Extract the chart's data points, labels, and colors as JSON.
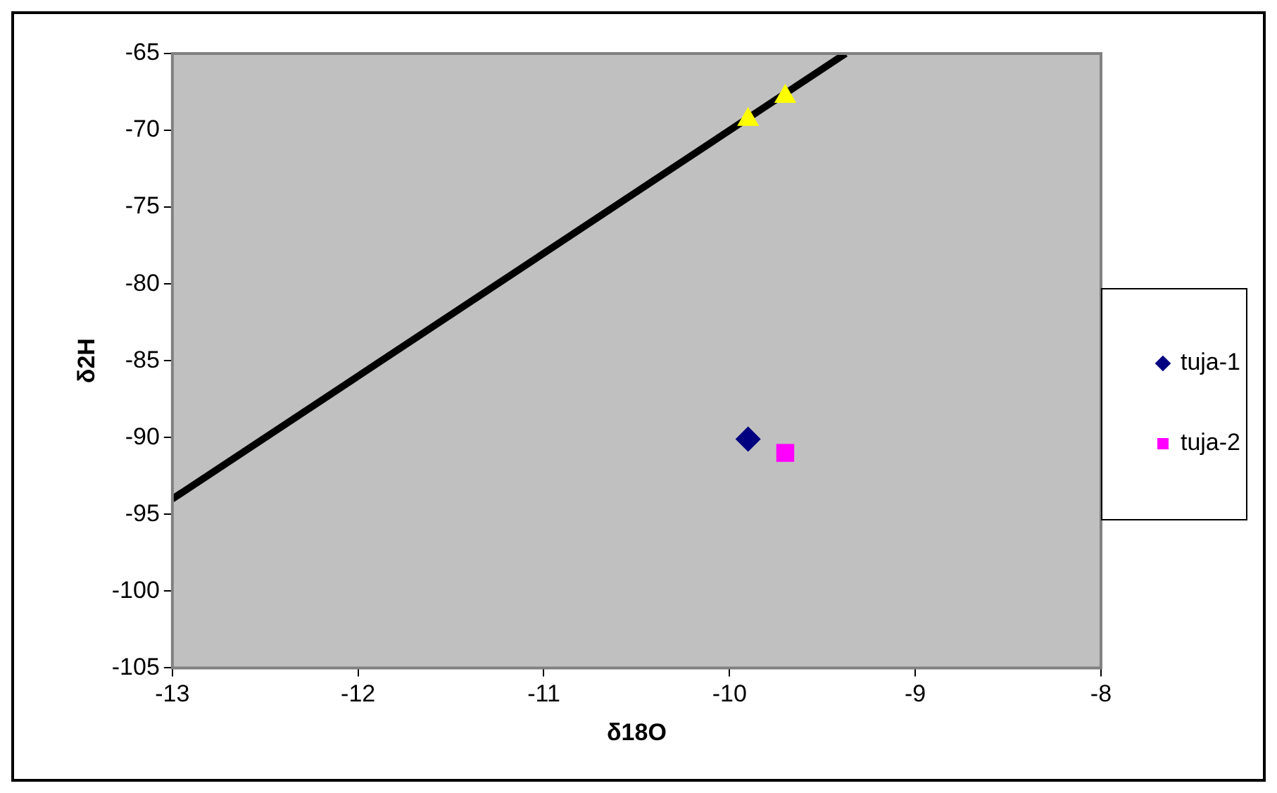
{
  "chart_data": {
    "type": "scatter",
    "xlabel": "δ18O",
    "ylabel": "δ2H",
    "xlim": [
      -13,
      -8
    ],
    "xticks": [
      -13,
      -12,
      -11,
      -10,
      -9,
      -8
    ],
    "ylim": [
      -105,
      -65
    ],
    "yticks": [
      -105,
      -100,
      -95,
      -90,
      -85,
      -80,
      -75,
      -70,
      -65
    ],
    "grid": false,
    "legend": "right",
    "series": [
      {
        "type": "line",
        "color": "#000000",
        "x": [
          -13,
          -9.375
        ],
        "values": [
          -94,
          -65
        ],
        "marker": "none"
      },
      {
        "name": "tuja-1",
        "color": "#000080",
        "x": [
          -9.9
        ],
        "values": [
          -90.1
        ],
        "marker": "diamond"
      },
      {
        "name": "tuja-2",
        "color": "#ff00ff",
        "x": [
          -9.7
        ],
        "values": [
          -91
        ],
        "marker": "square"
      },
      {
        "color": "#ffff00",
        "x": [
          -9.9,
          -9.7
        ],
        "values": [
          -69.3,
          -67.8
        ],
        "marker": "triangle"
      }
    ]
  }
}
